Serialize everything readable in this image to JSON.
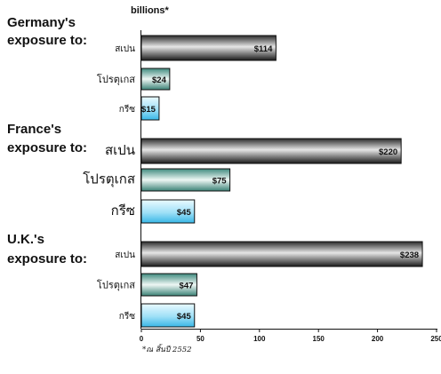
{
  "chart_data": {
    "type": "bar",
    "orientation": "horizontal",
    "unit_label": "billions*",
    "footnote": "*ณ สิ้นปี 2552",
    "xlim": [
      0,
      250
    ],
    "x_ticks": [
      "0",
      "50",
      "100",
      "150",
      "200",
      "250"
    ],
    "groups": [
      {
        "label": "Germany's exposure to:",
        "bars": [
          {
            "category": "สเปน",
            "value": 114,
            "label": "$114",
            "style": "dark"
          },
          {
            "category": "โปรตุเกส",
            "value": 24,
            "label": "$24",
            "style": "teal"
          },
          {
            "category": "กรีซ",
            "value": 15,
            "label": "$15",
            "style": "cyan"
          }
        ]
      },
      {
        "label": "France's exposure to:",
        "bars": [
          {
            "category": "สเปน",
            "value": 220,
            "label": "$220",
            "style": "dark"
          },
          {
            "category": "โปรตุเกส",
            "value": 75,
            "label": "$75",
            "style": "teal"
          },
          {
            "category": "กรีซ",
            "value": 45,
            "label": "$45",
            "style": "cyan"
          }
        ]
      },
      {
        "label": "U.K.'s exposure to:",
        "bars": [
          {
            "category": "สเปน",
            "value": 238,
            "label": "$238",
            "style": "dark"
          },
          {
            "category": "โปรตุเกส",
            "value": 47,
            "label": "$47",
            "style": "teal"
          },
          {
            "category": "กรีซ",
            "value": 45,
            "label": "$45",
            "style": "cyan"
          }
        ]
      }
    ],
    "colors": {
      "dark": "#3a3a3a",
      "teal": "#4e9a8e",
      "cyan": "#4fc3ea"
    }
  }
}
